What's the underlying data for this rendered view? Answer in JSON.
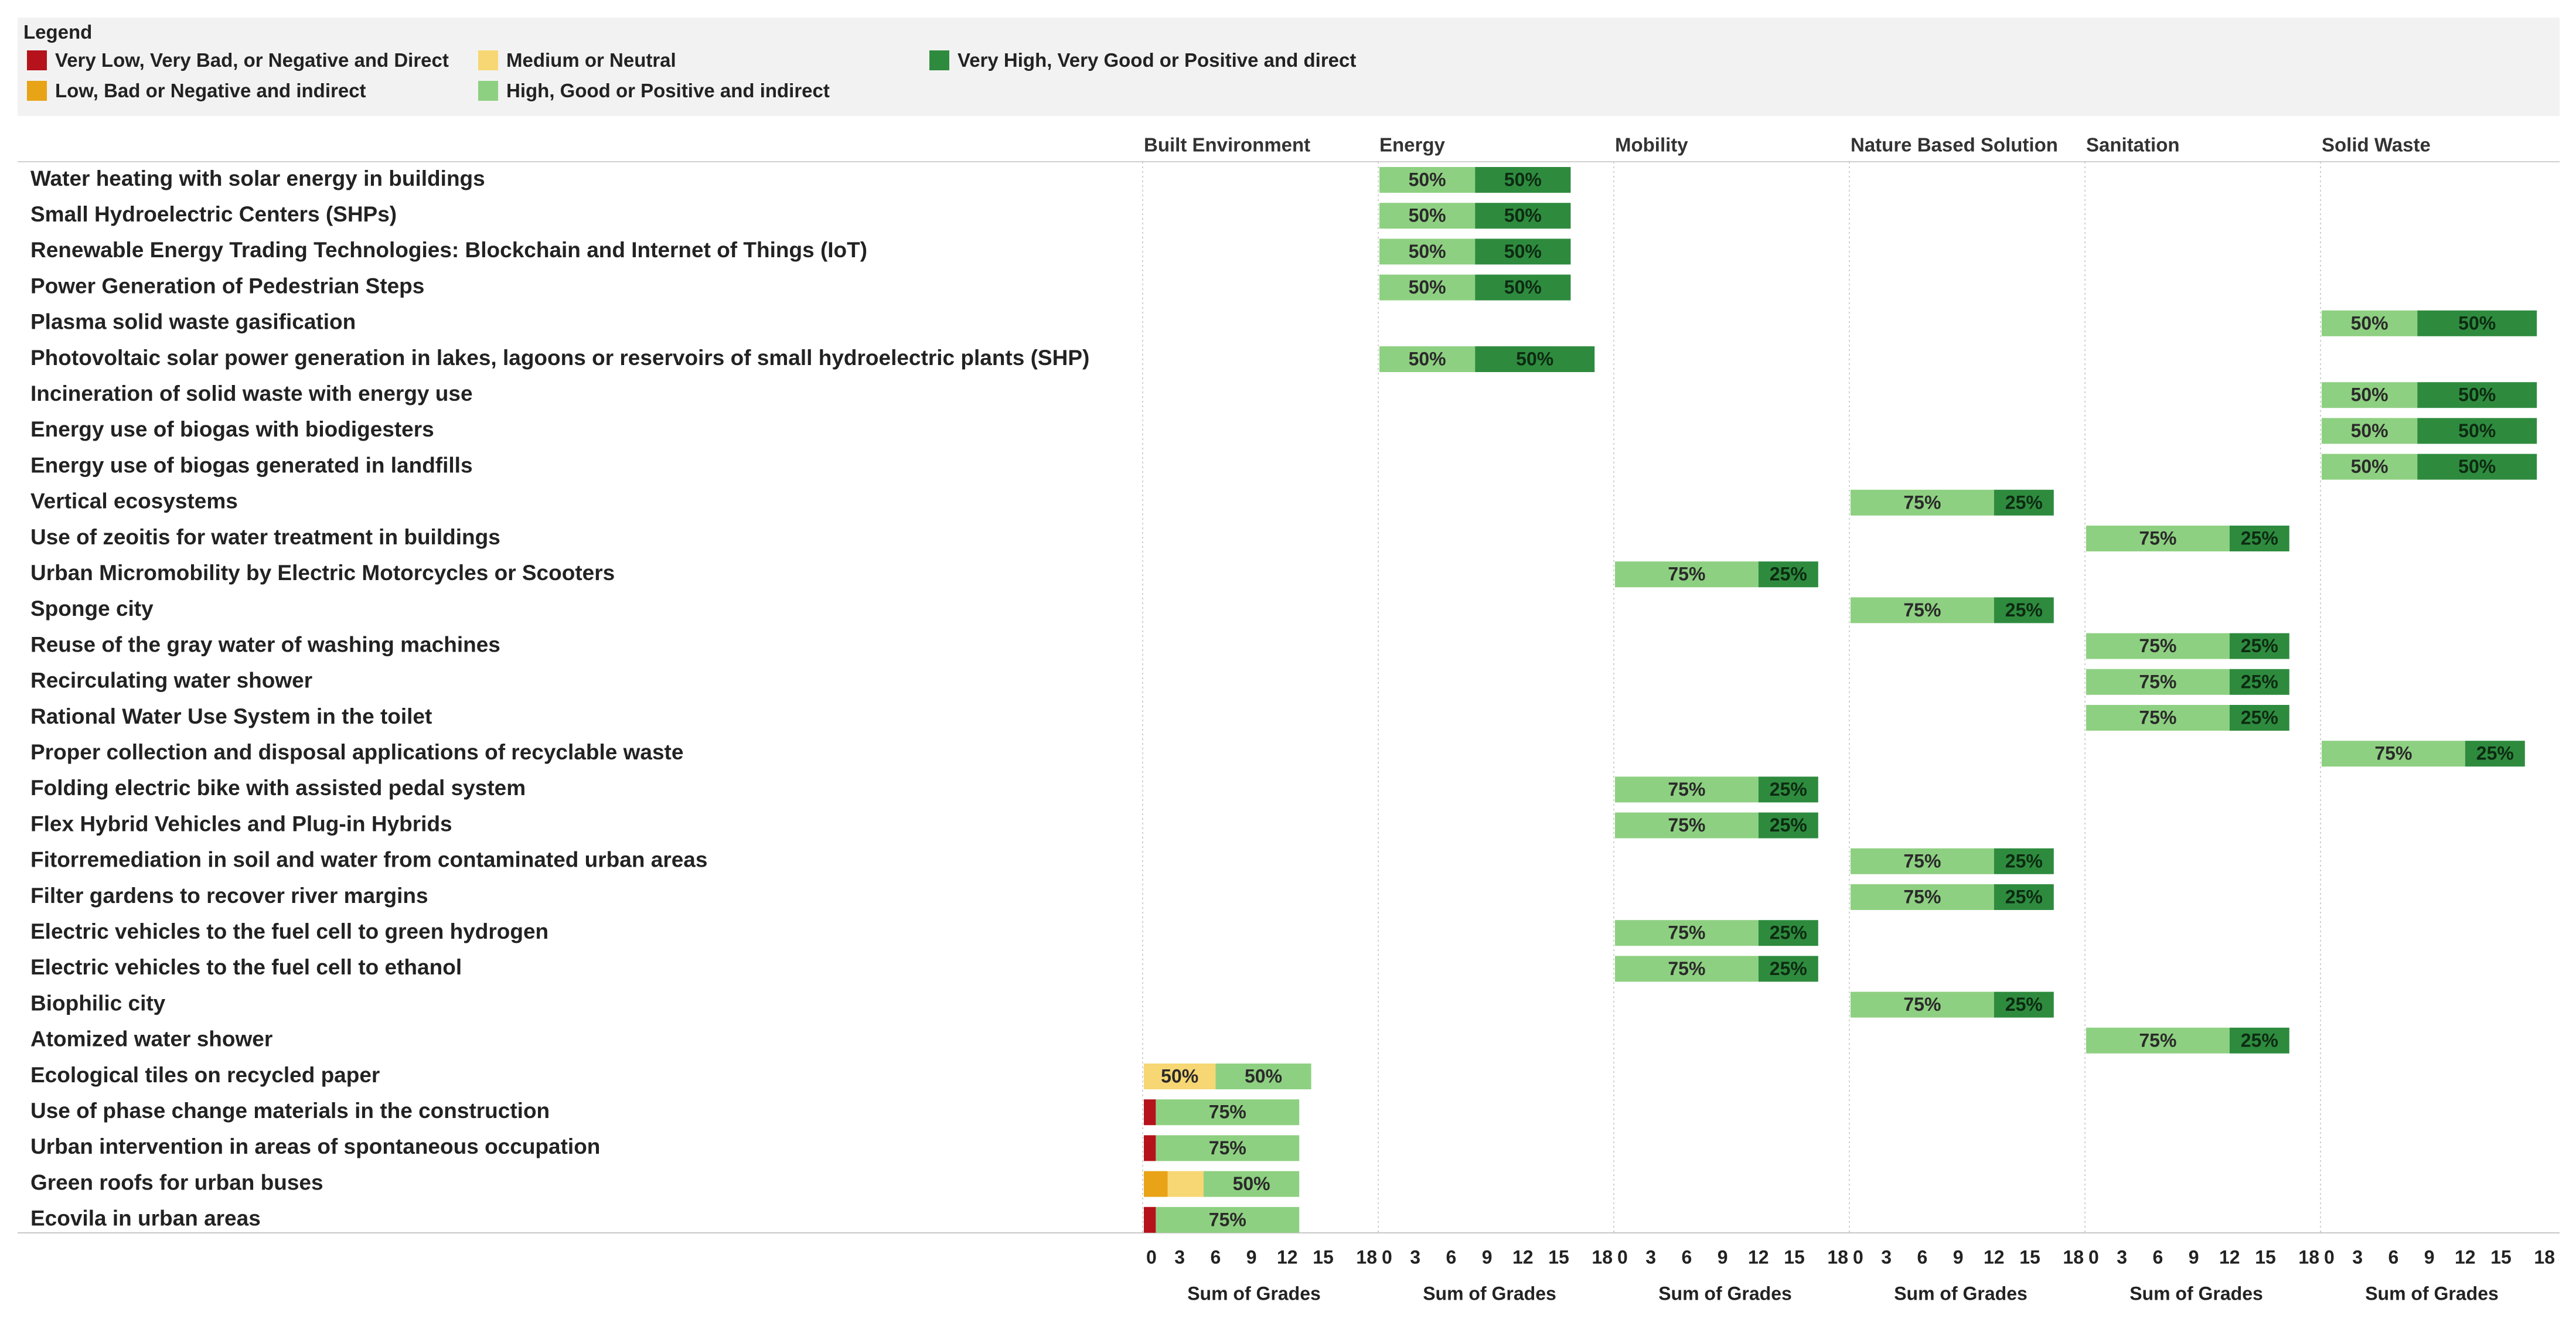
{
  "legend": {
    "title": "Legend",
    "items": [
      {
        "label": "Very Low, Very Bad, or Negative and Direct",
        "color": "#b5121b"
      },
      {
        "label": "Low, Bad or Negative and indirect",
        "color": "#e8a317"
      },
      {
        "label": "Medium or Neutral",
        "color": "#f7d774"
      },
      {
        "label": "High, Good or Positive and indirect",
        "color": "#8ed081"
      },
      {
        "label": "Very High, Very Good or Positive and direct",
        "color": "#2e8b3e"
      }
    ]
  },
  "chart_data": {
    "type": "bar",
    "orientation": "horizontal-stacked-faceted",
    "xlabel": "Sum of Grades",
    "xlim": [
      0,
      18
    ],
    "xticks": [
      0,
      3,
      6,
      9,
      12,
      15,
      18
    ],
    "panels": [
      "Built Environment",
      "Energy",
      "Mobility",
      "Nature Based Solution",
      "Sanitation",
      "Solid Waste"
    ],
    "categories": [
      "Water heating with solar energy in buildings",
      "Small Hydroelectric Centers (SHPs)",
      "Renewable Energy Trading Technologies: Blockchain and Internet of Things (IoT)",
      "Power Generation of Pedestrian Steps",
      "Plasma solid waste gasification",
      "Photovoltaic solar power generation in lakes, lagoons or reservoirs of small hydroelectric plants (SHP)",
      "Incineration of solid waste with energy use",
      "Energy use of biogas with biodigesters",
      "Energy use of biogas generated in landfills",
      "Vertical ecosystems",
      "Use of zeoitis for water treatment in buildings",
      "Urban Micromobility by Electric Motorcycles or Scooters",
      "Sponge city",
      "Reuse of the gray water of washing machines",
      "Recirculating water shower",
      "Rational Water Use System in the toilet",
      "Proper collection and disposal applications of recyclable waste",
      "Folding electric bike with assisted pedal system",
      "Flex Hybrid Vehicles and Plug-in Hybrids",
      "Fitorremediation in soil and water from contaminated urban areas",
      "Filter gardens to recover river margins",
      "Electric vehicles to the fuel cell to green hydrogen",
      "Electric vehicles to the fuel cell to ethanol",
      "Biophilic city",
      "Atomized water shower",
      "Ecological tiles on recycled paper",
      "Use of phase change materials in the construction",
      "Urban intervention in areas of spontaneous occupation",
      "Green roofs for urban buses",
      "Ecovila in urban areas"
    ],
    "bars": [
      {
        "row": 0,
        "panel": "Energy",
        "segments": [
          {
            "level": "High, Good or Positive and indirect",
            "value": 8,
            "label": "50%"
          },
          {
            "level": "Very High, Very Good or Positive and direct",
            "value": 8,
            "label": "50%"
          }
        ]
      },
      {
        "row": 1,
        "panel": "Energy",
        "segments": [
          {
            "level": "High, Good or Positive and indirect",
            "value": 8,
            "label": "50%"
          },
          {
            "level": "Very High, Very Good or Positive and direct",
            "value": 8,
            "label": "50%"
          }
        ]
      },
      {
        "row": 2,
        "panel": "Energy",
        "segments": [
          {
            "level": "High, Good or Positive and indirect",
            "value": 8,
            "label": "50%"
          },
          {
            "level": "Very High, Very Good or Positive and direct",
            "value": 8,
            "label": "50%"
          }
        ]
      },
      {
        "row": 3,
        "panel": "Energy",
        "segments": [
          {
            "level": "High, Good or Positive and indirect",
            "value": 8,
            "label": "50%"
          },
          {
            "level": "Very High, Very Good or Positive and direct",
            "value": 8,
            "label": "50%"
          }
        ]
      },
      {
        "row": 4,
        "panel": "Solid Waste",
        "segments": [
          {
            "level": "High, Good or Positive and indirect",
            "value": 8,
            "label": "50%"
          },
          {
            "level": "Very High, Very Good or Positive and direct",
            "value": 10,
            "label": "50%"
          }
        ]
      },
      {
        "row": 5,
        "panel": "Energy",
        "segments": [
          {
            "level": "High, Good or Positive and indirect",
            "value": 8,
            "label": "50%"
          },
          {
            "level": "Very High, Very Good or Positive and direct",
            "value": 10,
            "label": "50%"
          }
        ]
      },
      {
        "row": 6,
        "panel": "Solid Waste",
        "segments": [
          {
            "level": "High, Good or Positive and indirect",
            "value": 8,
            "label": "50%"
          },
          {
            "level": "Very High, Very Good or Positive and direct",
            "value": 10,
            "label": "50%"
          }
        ]
      },
      {
        "row": 7,
        "panel": "Solid Waste",
        "segments": [
          {
            "level": "High, Good or Positive and indirect",
            "value": 8,
            "label": "50%"
          },
          {
            "level": "Very High, Very Good or Positive and direct",
            "value": 10,
            "label": "50%"
          }
        ]
      },
      {
        "row": 8,
        "panel": "Solid Waste",
        "segments": [
          {
            "level": "High, Good or Positive and indirect",
            "value": 8,
            "label": "50%"
          },
          {
            "level": "Very High, Very Good or Positive and direct",
            "value": 10,
            "label": "50%"
          }
        ]
      },
      {
        "row": 9,
        "panel": "Nature Based Solution",
        "segments": [
          {
            "level": "High, Good or Positive and indirect",
            "value": 12,
            "label": "75%"
          },
          {
            "level": "Very High, Very Good or Positive and direct",
            "value": 5,
            "label": "25%"
          }
        ]
      },
      {
        "row": 10,
        "panel": "Sanitation",
        "segments": [
          {
            "level": "High, Good or Positive and indirect",
            "value": 12,
            "label": "75%"
          },
          {
            "level": "Very High, Very Good or Positive and direct",
            "value": 5,
            "label": "25%"
          }
        ]
      },
      {
        "row": 11,
        "panel": "Mobility",
        "segments": [
          {
            "level": "High, Good or Positive and indirect",
            "value": 12,
            "label": "75%"
          },
          {
            "level": "Very High, Very Good or Positive and direct",
            "value": 5,
            "label": "25%"
          }
        ]
      },
      {
        "row": 12,
        "panel": "Nature Based Solution",
        "segments": [
          {
            "level": "High, Good or Positive and indirect",
            "value": 12,
            "label": "75%"
          },
          {
            "level": "Very High, Very Good or Positive and direct",
            "value": 5,
            "label": "25%"
          }
        ]
      },
      {
        "row": 13,
        "panel": "Sanitation",
        "segments": [
          {
            "level": "High, Good or Positive and indirect",
            "value": 12,
            "label": "75%"
          },
          {
            "level": "Very High, Very Good or Positive and direct",
            "value": 5,
            "label": "25%"
          }
        ]
      },
      {
        "row": 14,
        "panel": "Sanitation",
        "segments": [
          {
            "level": "High, Good or Positive and indirect",
            "value": 12,
            "label": "75%"
          },
          {
            "level": "Very High, Very Good or Positive and direct",
            "value": 5,
            "label": "25%"
          }
        ]
      },
      {
        "row": 15,
        "panel": "Sanitation",
        "segments": [
          {
            "level": "High, Good or Positive and indirect",
            "value": 12,
            "label": "75%"
          },
          {
            "level": "Very High, Very Good or Positive and direct",
            "value": 5,
            "label": "25%"
          }
        ]
      },
      {
        "row": 16,
        "panel": "Solid Waste",
        "segments": [
          {
            "level": "High, Good or Positive and indirect",
            "value": 12,
            "label": "75%"
          },
          {
            "level": "Very High, Very Good or Positive and direct",
            "value": 5,
            "label": "25%"
          }
        ]
      },
      {
        "row": 17,
        "panel": "Mobility",
        "segments": [
          {
            "level": "High, Good or Positive and indirect",
            "value": 12,
            "label": "75%"
          },
          {
            "level": "Very High, Very Good or Positive and direct",
            "value": 5,
            "label": "25%"
          }
        ]
      },
      {
        "row": 18,
        "panel": "Mobility",
        "segments": [
          {
            "level": "High, Good or Positive and indirect",
            "value": 12,
            "label": "75%"
          },
          {
            "level": "Very High, Very Good or Positive and direct",
            "value": 5,
            "label": "25%"
          }
        ]
      },
      {
        "row": 19,
        "panel": "Nature Based Solution",
        "segments": [
          {
            "level": "High, Good or Positive and indirect",
            "value": 12,
            "label": "75%"
          },
          {
            "level": "Very High, Very Good or Positive and direct",
            "value": 5,
            "label": "25%"
          }
        ]
      },
      {
        "row": 20,
        "panel": "Nature Based Solution",
        "segments": [
          {
            "level": "High, Good or Positive and indirect",
            "value": 12,
            "label": "75%"
          },
          {
            "level": "Very High, Very Good or Positive and direct",
            "value": 5,
            "label": "25%"
          }
        ]
      },
      {
        "row": 21,
        "panel": "Mobility",
        "segments": [
          {
            "level": "High, Good or Positive and indirect",
            "value": 12,
            "label": "75%"
          },
          {
            "level": "Very High, Very Good or Positive and direct",
            "value": 5,
            "label": "25%"
          }
        ]
      },
      {
        "row": 22,
        "panel": "Mobility",
        "segments": [
          {
            "level": "High, Good or Positive and indirect",
            "value": 12,
            "label": "75%"
          },
          {
            "level": "Very High, Very Good or Positive and direct",
            "value": 5,
            "label": "25%"
          }
        ]
      },
      {
        "row": 23,
        "panel": "Nature Based Solution",
        "segments": [
          {
            "level": "High, Good or Positive and indirect",
            "value": 12,
            "label": "75%"
          },
          {
            "level": "Very High, Very Good or Positive and direct",
            "value": 5,
            "label": "25%"
          }
        ]
      },
      {
        "row": 24,
        "panel": "Sanitation",
        "segments": [
          {
            "level": "High, Good or Positive and indirect",
            "value": 12,
            "label": "75%"
          },
          {
            "level": "Very High, Very Good or Positive and direct",
            "value": 5,
            "label": "25%"
          }
        ]
      },
      {
        "row": 25,
        "panel": "Built Environment",
        "segments": [
          {
            "level": "Medium or Neutral",
            "value": 6,
            "label": "50%"
          },
          {
            "level": "High, Good or Positive and indirect",
            "value": 8,
            "label": "50%"
          }
        ]
      },
      {
        "row": 26,
        "panel": "Built Environment",
        "segments": [
          {
            "level": "Very Low, Very Bad, or Negative and Direct",
            "value": 1,
            "label": ""
          },
          {
            "level": "High, Good or Positive and indirect",
            "value": 12,
            "label": "75%"
          }
        ]
      },
      {
        "row": 27,
        "panel": "Built Environment",
        "segments": [
          {
            "level": "Very Low, Very Bad, or Negative and Direct",
            "value": 1,
            "label": ""
          },
          {
            "level": "High, Good or Positive and indirect",
            "value": 12,
            "label": "75%"
          }
        ]
      },
      {
        "row": 28,
        "panel": "Built Environment",
        "segments": [
          {
            "level": "Low, Bad or Negative and indirect",
            "value": 2,
            "label": ""
          },
          {
            "level": "Medium or Neutral",
            "value": 3,
            "label": ""
          },
          {
            "level": "High, Good or Positive and indirect",
            "value": 8,
            "label": "50%"
          }
        ]
      },
      {
        "row": 29,
        "panel": "Built Environment",
        "segments": [
          {
            "level": "Very Low, Very Bad, or Negative and Direct",
            "value": 1,
            "label": ""
          },
          {
            "level": "High, Good or Positive and indirect",
            "value": 12,
            "label": "75%"
          }
        ]
      }
    ]
  }
}
